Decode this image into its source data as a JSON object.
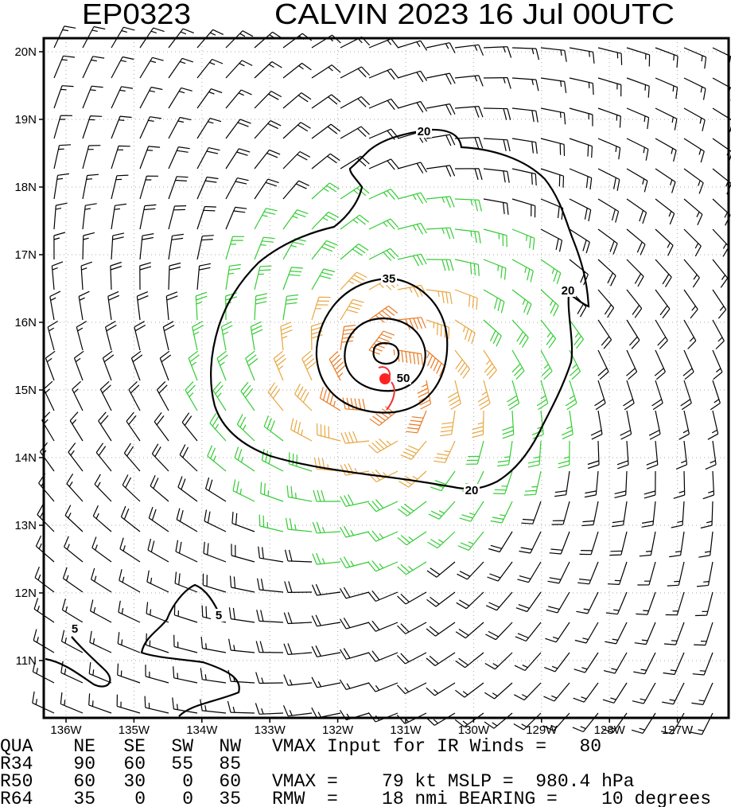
{
  "header": {
    "storm_id": "EP0323",
    "title": "CALVIN 2023 16 Jul 00UTC"
  },
  "map": {
    "lat_labels": [
      "20N",
      "19N",
      "18N",
      "17N",
      "16N",
      "15N",
      "14N",
      "13N",
      "12N",
      "11N"
    ],
    "lon_labels": [
      "136W",
      "135W",
      "134W",
      "133W",
      "132W",
      "131W",
      "130W",
      "129W",
      "128W",
      "127W"
    ],
    "contour_labels": [
      "20",
      "20",
      "20",
      "35",
      "50",
      "5",
      "5"
    ]
  },
  "table": {
    "header": [
      "QUA",
      "NE",
      "SE",
      "SW",
      "NW"
    ],
    "rows": [
      [
        "R34",
        "90",
        "60",
        "55",
        "85"
      ],
      [
        "R50",
        "60",
        "30",
        "0",
        "60"
      ],
      [
        "R64",
        "35",
        "0",
        "0",
        "35"
      ]
    ]
  },
  "notes": [
    "VMAX Input for IR Winds =   80",
    "VMAX =    79 kt MSLP =  980.4 hPa",
    "RMW  =    18 nmi BEARING =    10 degrees"
  ]
}
